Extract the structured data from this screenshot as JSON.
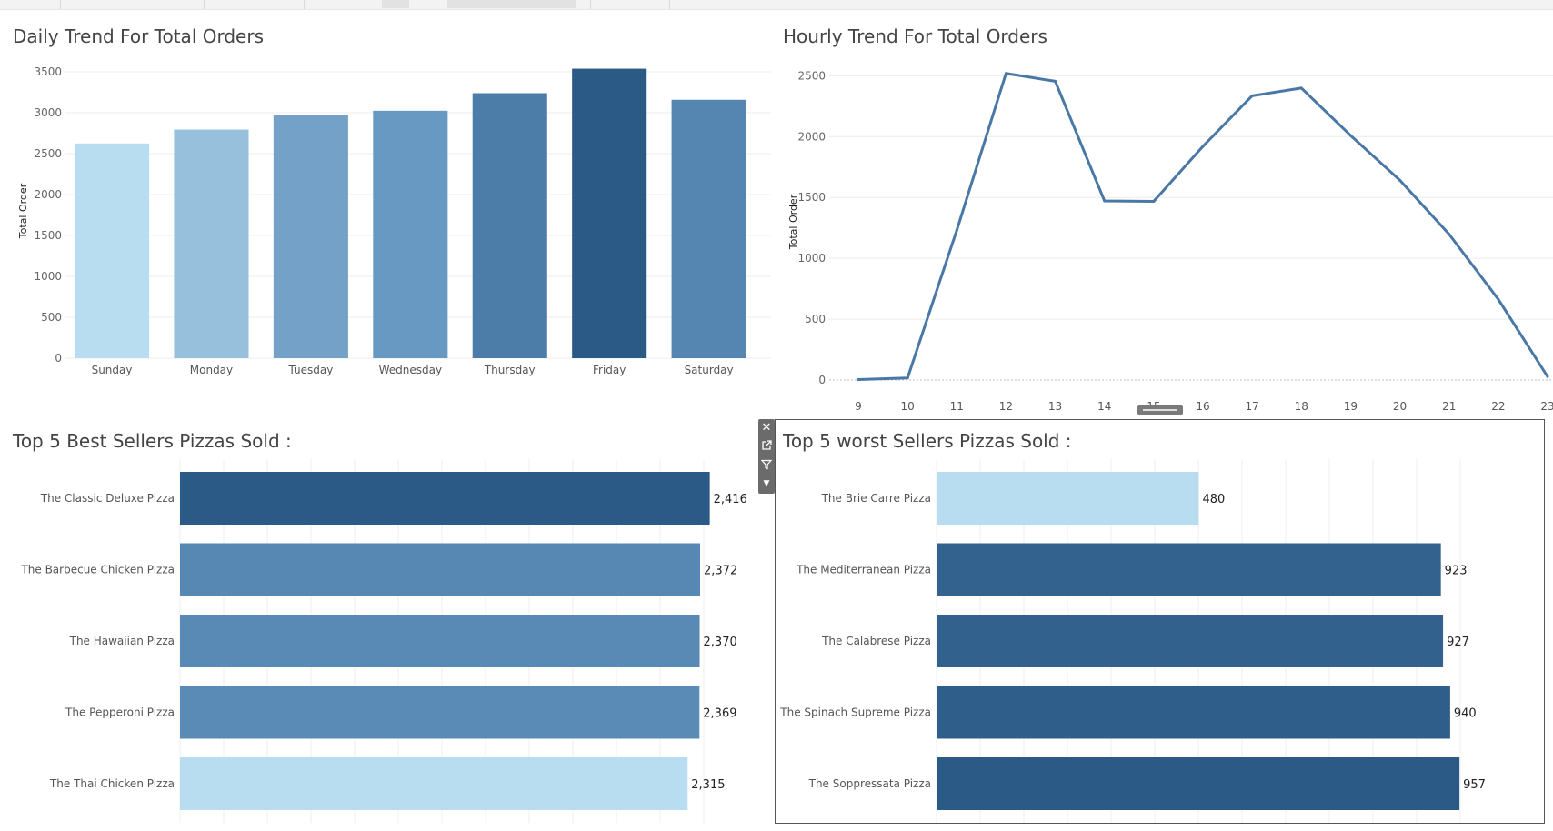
{
  "dashboard": {
    "daily_title": "Daily Trend For Total Orders",
    "hourly_title": "Hourly Trend For Total Orders",
    "best_title": "Top 5 Best Sellers Pizzas Sold :",
    "worst_title": "Top 5 worst Sellers Pizzas Sold :"
  },
  "colors": {
    "light": "#b9ddf0",
    "mid": "#5d8fbb",
    "dark": "#2c5a86",
    "line": "#4a78a6"
  },
  "icons": [
    "close-icon",
    "pop-out-icon",
    "filter-icon",
    "more-options-icon"
  ],
  "chart_data": [
    {
      "type": "bar",
      "title": "Daily Trend For Total Orders",
      "ylabel": "Total Order",
      "xlabel": "",
      "categories": [
        "Sunday",
        "Monday",
        "Tuesday",
        "Wednesday",
        "Thursday",
        "Friday",
        "Saturday"
      ],
      "values": [
        2624,
        2794,
        2973,
        3024,
        3239,
        3538,
        3158
      ],
      "ylim": [
        0,
        3600
      ],
      "yticks": [
        0,
        500,
        1000,
        1500,
        2000,
        2500,
        3000,
        3500
      ],
      "grid": true
    },
    {
      "type": "line",
      "title": "Hourly Trend For Total Orders",
      "ylabel": "Total Order",
      "xlabel": "",
      "x": [
        9,
        10,
        11,
        12,
        13,
        14,
        15,
        16,
        17,
        18,
        19,
        20,
        21,
        22,
        23
      ],
      "values": [
        4,
        17,
        1231,
        2520,
        2455,
        1472,
        1468,
        1920,
        2336,
        2399,
        2009,
        1642,
        1198,
        663,
        28
      ],
      "ylim": [
        0,
        2600
      ],
      "yticks": [
        0,
        500,
        1000,
        1500,
        2000,
        2500
      ],
      "grid": true
    },
    {
      "type": "bar",
      "orientation": "horizontal",
      "title": "Top 5 Best Sellers Pizzas Sold :",
      "categories": [
        "The Classic Deluxe Pizza",
        "The Barbecue Chicken Pizza",
        "The Hawaiian Pizza",
        "The Pepperoni Pizza",
        "The Thai Chicken Pizza"
      ],
      "values": [
        2416,
        2372,
        2370,
        2369,
        2315
      ],
      "labels": [
        "2,416",
        "2,372",
        "2,370",
        "2,369",
        "2,315"
      ],
      "xlim": [
        0,
        2600
      ],
      "grid": true
    },
    {
      "type": "bar",
      "orientation": "horizontal",
      "title": "Top 5 worst Sellers Pizzas Sold :",
      "categories": [
        "The Brie Carre Pizza",
        "The Mediterranean Pizza",
        "The Calabrese Pizza",
        "The Spinach Supreme Pizza",
        "The Soppressata Pizza"
      ],
      "values": [
        480,
        923,
        927,
        940,
        957
      ],
      "labels": [
        "480",
        "923",
        "927",
        "940",
        "957"
      ],
      "xlim": [
        0,
        1050
      ],
      "grid": true
    }
  ]
}
